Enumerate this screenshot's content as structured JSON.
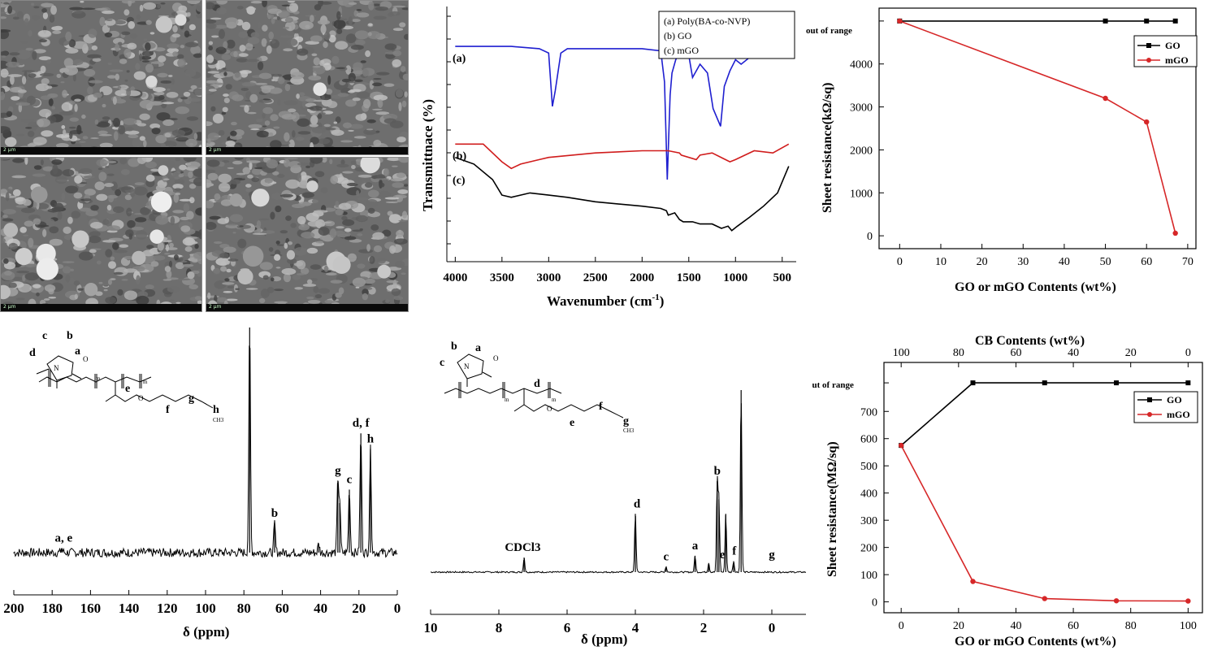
{
  "sem_images": [
    {
      "scale_label": "2 μm"
    },
    {
      "scale_label": "2 μm"
    },
    {
      "scale_label": "2 μm"
    },
    {
      "scale_label": "2 μm"
    }
  ],
  "colors": {
    "black": "#000000",
    "red": "#d62728",
    "blue": "#1f1fd0",
    "ftir_red": "#d01c1c"
  },
  "chart_data": [
    {
      "type": "line",
      "id": "ftir",
      "title": "",
      "xlabel": "Wavenumber (cm-1)",
      "xlabel_main": "Wavenumber (cm",
      "xlabel_sup": "-1",
      "xlabel_end": ")",
      "ylabel": "Transmittnace (%)",
      "xlim": [
        4000,
        400
      ],
      "xticks": [
        4000,
        3500,
        3000,
        2500,
        2000,
        1500,
        1000,
        500
      ],
      "legend": [
        "(a) Poly(BA-co-NVP)",
        "(b) GO",
        "(c) mGO"
      ],
      "curve_labels": [
        "(a)",
        "(b)",
        "(c)"
      ],
      "series": [
        {
          "name": "(a) Poly(BA-co-NVP)",
          "color": "#1f1fd0",
          "x": [
            4000,
            3600,
            3400,
            3100,
            3000,
            2960,
            2930,
            2870,
            2800,
            2500,
            2000,
            1800,
            1760,
            1730,
            1700,
            1680,
            1640,
            1600,
            1500,
            1460,
            1380,
            1300,
            1240,
            1160,
            1120,
            1060,
            1000,
            940,
            850,
            760,
            650,
            500,
            430
          ],
          "y": [
            82,
            82,
            82,
            81,
            79,
            55,
            62,
            79,
            81,
            81,
            81,
            80,
            66,
            22,
            60,
            70,
            76,
            79,
            78,
            68,
            74,
            70,
            54,
            46,
            64,
            71,
            76,
            74,
            77,
            78,
            79,
            80,
            82
          ]
        },
        {
          "name": "(b) GO",
          "color": "#d01c1c",
          "x": [
            4000,
            3700,
            3500,
            3400,
            3300,
            3100,
            3000,
            2500,
            2000,
            1740,
            1720,
            1600,
            1580,
            1420,
            1380,
            1250,
            1060,
            1000,
            800,
            600,
            430
          ],
          "y": [
            38,
            38,
            30,
            27,
            29,
            31,
            32,
            34,
            35,
            35,
            35,
            34,
            33,
            31,
            33,
            34,
            30,
            31,
            35,
            34,
            38
          ]
        },
        {
          "name": "(c) mGO",
          "color": "#000000",
          "x": [
            4000,
            3800,
            3600,
            3500,
            3400,
            3200,
            3000,
            2800,
            2500,
            2000,
            1800,
            1740,
            1720,
            1650,
            1600,
            1560,
            1460,
            1380,
            1250,
            1150,
            1080,
            1040,
            980,
            850,
            700,
            550,
            430
          ],
          "y": [
            32,
            29,
            22,
            15,
            14,
            16,
            15,
            14,
            12,
            10,
            9,
            8,
            6,
            7,
            4,
            3,
            3,
            2,
            2,
            0,
            1,
            -1,
            1,
            5,
            10,
            16,
            28
          ]
        }
      ]
    },
    {
      "type": "line",
      "id": "sheet_kohm",
      "xlabel": "GO or mGO Contents (wt%)",
      "ylabel": "Sheet resistance(kΩ/sq)",
      "xlim": [
        -5,
        72
      ],
      "ylim": [
        -300,
        5300
      ],
      "xticks": [
        0,
        10,
        20,
        30,
        40,
        50,
        60,
        70
      ],
      "yticks": [
        0,
        1000,
        2000,
        3000,
        4000
      ],
      "y_extra_label": "out of range",
      "legend": [
        "GO",
        "mGO"
      ],
      "series": [
        {
          "name": "GO",
          "color": "#000000",
          "x": [
            0,
            50,
            60,
            67
          ],
          "y": [
            5000,
            5000,
            5000,
            5000
          ]
        },
        {
          "name": "mGO",
          "color": "#d62728",
          "x": [
            0,
            50,
            60,
            67
          ],
          "y": [
            5000,
            3200,
            2650,
            60
          ]
        }
      ]
    },
    {
      "type": "line",
      "id": "c13_nmr",
      "xlabel": "δ (ppm)",
      "xlim": [
        200,
        0
      ],
      "xticks": [
        200,
        180,
        160,
        140,
        120,
        100,
        80,
        60,
        40,
        20,
        0
      ],
      "peaks": [
        {
          "ppm": 77,
          "h": 100
        },
        {
          "ppm": 64,
          "h": 13
        },
        {
          "ppm": 31,
          "h": 32
        },
        {
          "ppm": 30,
          "h": 22
        },
        {
          "ppm": 25,
          "h": 28
        },
        {
          "ppm": 19,
          "h": 53
        },
        {
          "ppm": 14,
          "h": 46
        },
        {
          "ppm": 175,
          "h": 2
        },
        {
          "ppm": 41,
          "h": 4
        }
      ],
      "peak_labels": [
        {
          "text": "a, e",
          "ppm": 174
        },
        {
          "text": "b",
          "ppm": 64
        },
        {
          "text": "g",
          "ppm": 31
        },
        {
          "text": "c",
          "ppm": 25
        },
        {
          "text": "d, f",
          "ppm": 19
        },
        {
          "text": "h",
          "ppm": 14
        }
      ],
      "structure_labels": [
        "c",
        "b",
        "d",
        "a",
        "N",
        "O",
        "e",
        "O",
        "f",
        "g",
        "h",
        "m",
        "m",
        "CH3"
      ]
    },
    {
      "type": "line",
      "id": "h1_nmr",
      "xlabel": "δ (ppm)",
      "xlim": [
        10,
        -1
      ],
      "xticks": [
        10,
        8,
        6,
        4,
        2,
        0
      ],
      "peaks": [
        {
          "ppm": 7.26,
          "h": 8
        },
        {
          "ppm": 4.0,
          "h": 32
        },
        {
          "ppm": 3.1,
          "h": 3
        },
        {
          "ppm": 2.25,
          "h": 9
        },
        {
          "ppm": 1.85,
          "h": 5
        },
        {
          "ppm": 1.6,
          "h": 50
        },
        {
          "ppm": 1.55,
          "h": 40
        },
        {
          "ppm": 1.35,
          "h": 32
        },
        {
          "ppm": 1.12,
          "h": 6
        },
        {
          "ppm": 0.9,
          "h": 100
        }
      ],
      "peak_labels": [
        {
          "text": "CDCl3",
          "ppm": 7.3
        },
        {
          "text": "d",
          "ppm": 3.95
        },
        {
          "text": "c",
          "ppm": 3.1
        },
        {
          "text": "a",
          "ppm": 2.25
        },
        {
          "text": "b",
          "ppm": 1.6
        },
        {
          "text": "e",
          "ppm": 1.45
        },
        {
          "text": "f",
          "ppm": 1.1
        },
        {
          "text": "g",
          "ppm": 0.0
        }
      ],
      "structure_labels": [
        "b",
        "a",
        "c",
        "d",
        "N",
        "O",
        "O",
        "e",
        "f",
        "g",
        "m",
        "m",
        "CH3"
      ]
    },
    {
      "type": "line",
      "id": "sheet_mohm",
      "xlabel": "GO or mGO Contents (wt%)",
      "x2label": "CB Contents (wt%)",
      "ylabel": "Sheet resistance(MΩ/sq)",
      "xlim": [
        -6,
        105
      ],
      "ylim": [
        -40,
        880
      ],
      "xticks": [
        0,
        20,
        40,
        60,
        80,
        100
      ],
      "x2ticks": [
        100,
        80,
        60,
        40,
        20,
        0
      ],
      "yticks": [
        0,
        100,
        200,
        300,
        400,
        500,
        600,
        700
      ],
      "y_extra_label": "out of range",
      "legend": [
        "GO",
        "mGO"
      ],
      "series": [
        {
          "name": "GO",
          "color": "#000000",
          "x": [
            0,
            25,
            50,
            75,
            100
          ],
          "y": [
            575,
            805,
            805,
            805,
            805
          ]
        },
        {
          "name": "mGO",
          "color": "#d62728",
          "x": [
            0,
            25,
            50,
            75,
            100
          ],
          "y": [
            575,
            75,
            12,
            4,
            3
          ]
        }
      ]
    }
  ]
}
